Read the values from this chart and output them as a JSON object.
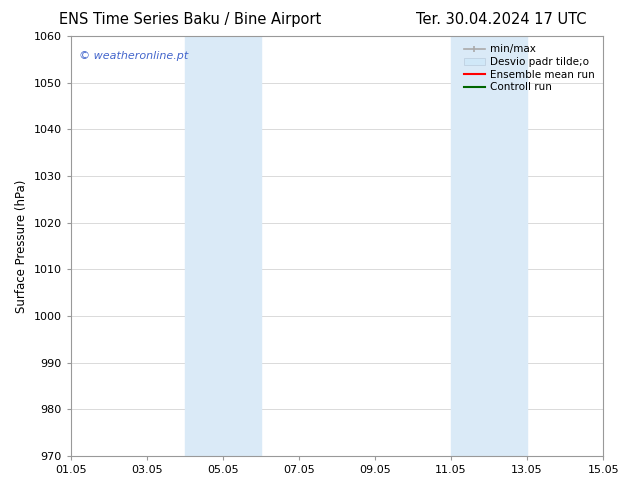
{
  "title_left": "ENS Time Series Baku / Bine Airport",
  "title_right": "Ter. 30.04.2024 17 UTC",
  "ylabel": "Surface Pressure (hPa)",
  "ylim": [
    970,
    1060
  ],
  "yticks": [
    970,
    980,
    990,
    1000,
    1010,
    1020,
    1030,
    1040,
    1050,
    1060
  ],
  "xtick_labels": [
    "01.05",
    "03.05",
    "05.05",
    "07.05",
    "09.05",
    "11.05",
    "13.05",
    "15.05"
  ],
  "xtick_positions": [
    0,
    2,
    4,
    6,
    8,
    10,
    12,
    14
  ],
  "xlim": [
    0,
    14
  ],
  "shaded_bands": [
    {
      "x_start": 3.0,
      "x_end": 5.0,
      "color": "#daeaf7"
    },
    {
      "x_start": 10.0,
      "x_end": 12.0,
      "color": "#daeaf7"
    }
  ],
  "watermark_text": "© weatheronline.pt",
  "watermark_color": "#4466cc",
  "background_color": "#ffffff",
  "plot_bg_color": "#ffffff",
  "grid_color": "#cccccc",
  "legend_items": [
    {
      "label": "min/max",
      "color": "#aaaaaa",
      "lw": 1.2
    },
    {
      "label": "Desvio padr tilde;o",
      "color": "#ccddee",
      "lw": 6
    },
    {
      "label": "Ensemble mean run",
      "color": "#ff0000",
      "lw": 1.5
    },
    {
      "label": "Controll run",
      "color": "#006600",
      "lw": 1.5
    }
  ],
  "title_fontsize": 10.5,
  "axis_label_fontsize": 8.5,
  "tick_fontsize": 8,
  "legend_fontsize": 7.5,
  "watermark_fontsize": 8
}
